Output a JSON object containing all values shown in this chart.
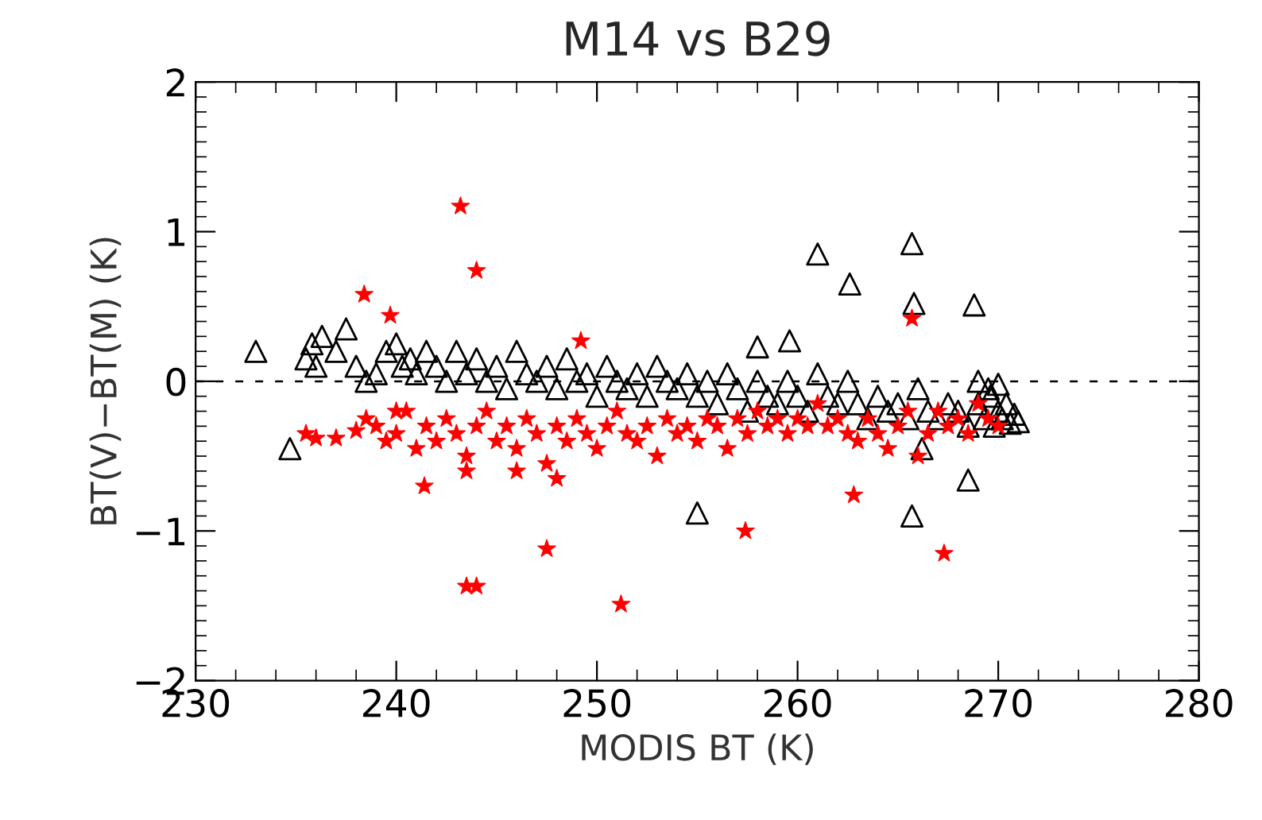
{
  "chart_data": {
    "type": "scatter",
    "title": "M14 vs B29",
    "xlabel": "MODIS BT (K)",
    "ylabel": "BT(V)−BT(M) (K)",
    "xlim": [
      230,
      280
    ],
    "xticks": [
      230,
      240,
      250,
      260,
      270,
      280
    ],
    "ylim": [
      -2,
      2
    ],
    "yticks": [
      {
        "value": -2,
        "label": "−2"
      },
      {
        "value": -1,
        "label": "−1"
      },
      0,
      1,
      2
    ],
    "grid": false,
    "legend": false,
    "ref_lines": [
      {
        "axis": "y",
        "value": 0,
        "color": "#000000",
        "line_style": "dashed"
      }
    ],
    "series": [
      {
        "color": "#000000",
        "marker": "triangle",
        "x": [
          233,
          234.7,
          255,
          261,
          262.6,
          265.7,
          265.8,
          268.8,
          265.7,
          268.5,
          266.2,
          259.6,
          258,
          235.5,
          235.8,
          236,
          236.3,
          237,
          237.5,
          238,
          238.5,
          239,
          239.5,
          240,
          240.3,
          240.7,
          241,
          241.5,
          242,
          242.5,
          243,
          243.5,
          244,
          244.5,
          245,
          245.5,
          246,
          246.5,
          247,
          247.5,
          248,
          248.5,
          249,
          249.5,
          250,
          250.5,
          251,
          251.5,
          252,
          252.5,
          253,
          253.5,
          254,
          254.5,
          255,
          255.5,
          256,
          256.5,
          257,
          257.5,
          258,
          258.5,
          259,
          259.5,
          260,
          260.5,
          261,
          261.5,
          262,
          262.5,
          263,
          263.5,
          264,
          264.5,
          265,
          265.5,
          266,
          266.5,
          267,
          267.5,
          268,
          268.5,
          269,
          269,
          269.3,
          269.6,
          269.8,
          270,
          270.2,
          270.4,
          270.6,
          270.8,
          271,
          269.5,
          270
        ],
        "values": [
          0.2,
          -0.45,
          -0.88,
          0.85,
          0.65,
          0.92,
          0.52,
          0.51,
          -0.9,
          -0.66,
          -0.45,
          0.27,
          0.23,
          0.15,
          0.25,
          0.1,
          0.3,
          0.2,
          0.35,
          0.1,
          0.0,
          0.05,
          0.2,
          0.25,
          0.1,
          0.15,
          0.05,
          0.2,
          0.1,
          0.0,
          0.2,
          0.05,
          0.15,
          0.0,
          0.1,
          -0.05,
          0.2,
          0.05,
          0.0,
          0.1,
          -0.05,
          0.15,
          0.0,
          0.05,
          -0.1,
          0.1,
          0.0,
          -0.05,
          0.05,
          -0.1,
          0.1,
          0.0,
          -0.05,
          0.05,
          -0.1,
          0.0,
          -0.15,
          0.05,
          -0.05,
          -0.2,
          0.0,
          -0.1,
          -0.15,
          0.0,
          -0.1,
          -0.2,
          0.05,
          -0.1,
          -0.15,
          0.0,
          -0.15,
          -0.25,
          -0.1,
          -0.2,
          -0.15,
          -0.25,
          -0.05,
          -0.2,
          -0.25,
          -0.15,
          -0.2,
          -0.3,
          0.0,
          -0.15,
          -0.25,
          -0.1,
          -0.3,
          -0.2,
          -0.25,
          -0.15,
          -0.28,
          -0.22,
          -0.27,
          -0.05,
          -0.02
        ]
      },
      {
        "color": "#ff0000",
        "marker": "star",
        "x": [
          243.2,
          244,
          238.4,
          239.7,
          243.5,
          244,
          247.5,
          251.2,
          257.4,
          267.3,
          265.7,
          249.2,
          262.8,
          241.4,
          235.5,
          236,
          237,
          238,
          238.5,
          239,
          239.5,
          240,
          240.5,
          241,
          241.5,
          242,
          242.5,
          243,
          243.5,
          244,
          244.5,
          245,
          245.5,
          246,
          246.5,
          247,
          247.5,
          248,
          248.5,
          249,
          249.5,
          250,
          250.5,
          251,
          251.5,
          252,
          252.5,
          253,
          253.5,
          254,
          254.5,
          255,
          255.5,
          256,
          256.5,
          257,
          257.5,
          258,
          258.5,
          259,
          259.5,
          260,
          260.5,
          261,
          261.5,
          262,
          262.5,
          263,
          263.5,
          264,
          264.5,
          265,
          265.5,
          266,
          266.5,
          267,
          267.5,
          268,
          268.5,
          269,
          269.5,
          270,
          246,
          248,
          243.5,
          240
        ],
        "values": [
          1.17,
          0.74,
          0.58,
          0.44,
          -1.37,
          -1.37,
          -1.12,
          -1.49,
          -1.0,
          -1.15,
          0.42,
          0.27,
          -0.76,
          -0.7,
          -0.35,
          -0.38,
          -0.38,
          -0.33,
          -0.25,
          -0.3,
          -0.4,
          -0.35,
          -0.2,
          -0.45,
          -0.3,
          -0.4,
          -0.25,
          -0.35,
          -0.5,
          -0.3,
          -0.2,
          -0.4,
          -0.3,
          -0.45,
          -0.25,
          -0.35,
          -0.55,
          -0.3,
          -0.4,
          -0.25,
          -0.35,
          -0.45,
          -0.3,
          -0.2,
          -0.35,
          -0.4,
          -0.3,
          -0.5,
          -0.25,
          -0.35,
          -0.3,
          -0.4,
          -0.25,
          -0.3,
          -0.45,
          -0.25,
          -0.35,
          -0.2,
          -0.3,
          -0.25,
          -0.35,
          -0.25,
          -0.3,
          -0.15,
          -0.3,
          -0.25,
          -0.35,
          -0.4,
          -0.25,
          -0.35,
          -0.45,
          -0.3,
          -0.2,
          -0.5,
          -0.35,
          -0.2,
          -0.3,
          -0.25,
          -0.35,
          -0.15,
          -0.25,
          -0.3,
          -0.6,
          -0.65,
          -0.6,
          -0.2
        ]
      }
    ]
  }
}
